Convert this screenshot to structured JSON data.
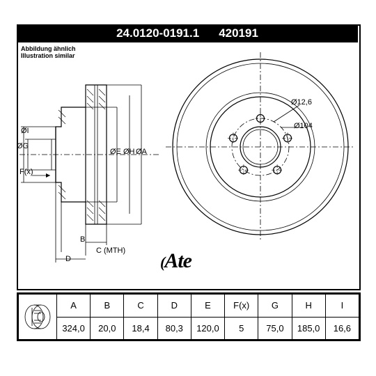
{
  "header": {
    "part_no": "24.0120-0191.1",
    "alt_no": "420191",
    "bg": "#000000",
    "fg": "#ffffff",
    "fontsize": 18
  },
  "caption": {
    "line1": "Abbildung ähnlich",
    "line2": "Illustration similar"
  },
  "logo": {
    "text": "Ate"
  },
  "drawing": {
    "front_view": {
      "outer_diameter": 324.0,
      "bolt_circle": 104,
      "bolt_hole": 12.6,
      "bolt_count": 5,
      "hub_bore": 75.0,
      "callout_bolt": "Ø12,6",
      "callout_pcd": "Ø104"
    },
    "side_view": {
      "labels": {
        "I": "ØI",
        "G": "ØG",
        "E": "ØE",
        "H": "ØH",
        "A": "ØA",
        "F": "F(x)",
        "B": "B",
        "D": "D",
        "C": "C (MTH)"
      }
    },
    "line_color": "#000000",
    "background": "#ffffff"
  },
  "table": {
    "columns": [
      "A",
      "B",
      "C",
      "D",
      "E",
      "F(x)",
      "G",
      "H",
      "I"
    ],
    "values": [
      "324,0",
      "20,0",
      "18,4",
      "80,3",
      "120,0",
      "5",
      "75,0",
      "185,0",
      "16,6"
    ]
  }
}
